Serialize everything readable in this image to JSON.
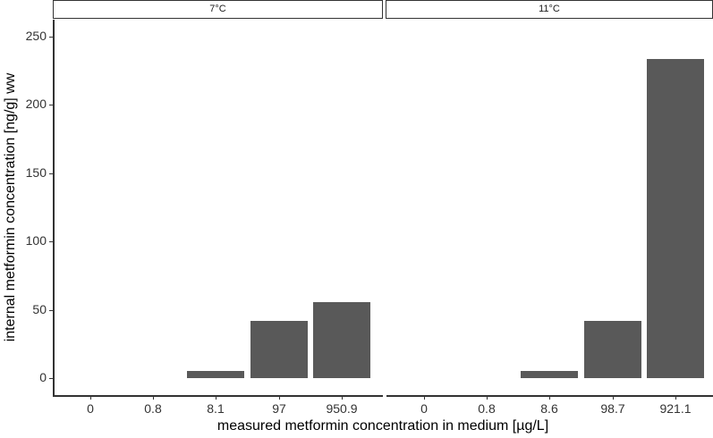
{
  "chart_data": {
    "type": "bar",
    "title": "",
    "xlabel": "measured metformin concentration in medium [µg/L]",
    "ylabel": "internal metformin concentration [ng/g] ww",
    "ylim": [
      0,
      260
    ],
    "yticks": [
      "0",
      "50",
      "100",
      "150",
      "200",
      "250"
    ],
    "grid": false,
    "legend": null,
    "facets": [
      {
        "label": "7°C",
        "categories": [
          "0",
          "0.8",
          "8.1",
          "97",
          "950.9"
        ],
        "values": [
          0,
          0,
          5,
          42,
          55.5
        ]
      },
      {
        "label": "11°C",
        "categories": [
          "0",
          "0.8",
          "8.6",
          "98.7",
          "921.1"
        ],
        "values": [
          0,
          0,
          5,
          42,
          233.5
        ]
      }
    ],
    "bar_color": "#595959"
  }
}
